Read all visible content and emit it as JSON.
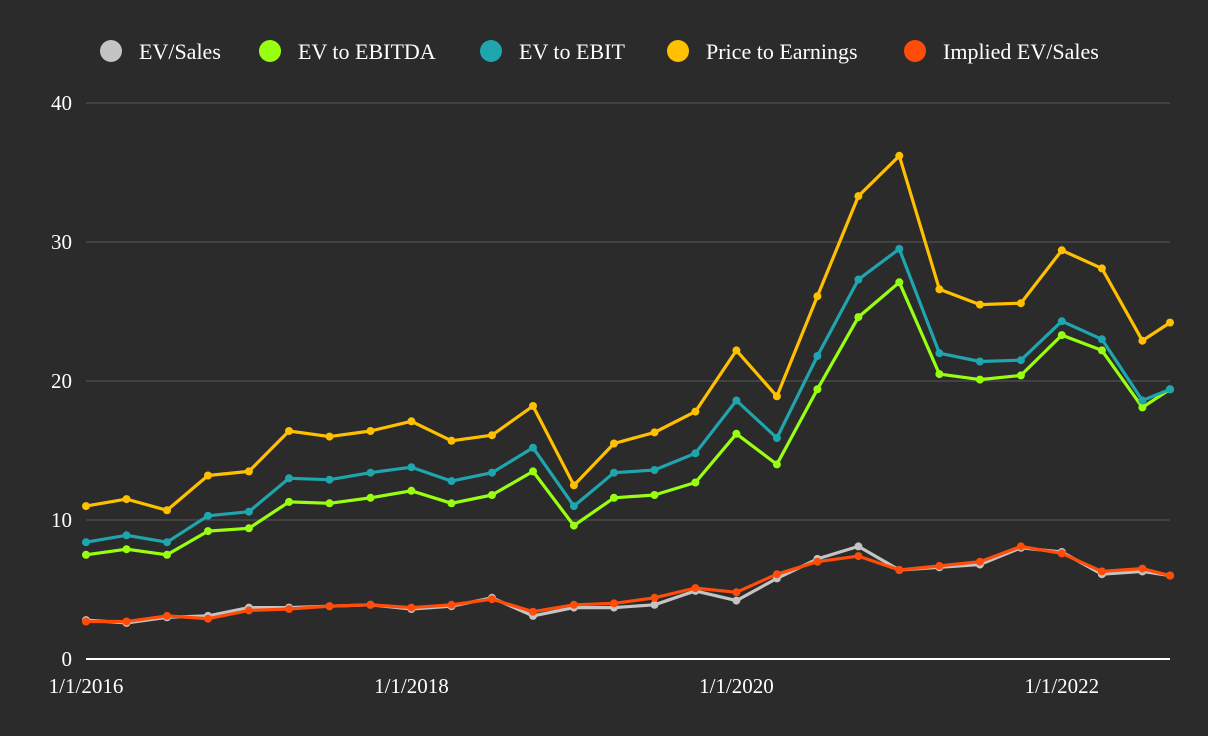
{
  "chart_data": {
    "type": "line",
    "title": "",
    "xlabel": "",
    "ylabel": "",
    "ylim": [
      0,
      40
    ],
    "yticks": [
      0,
      10,
      20,
      30,
      40
    ],
    "xlim": [
      "2016-01-01",
      "2022-09-01"
    ],
    "xticks": [
      {
        "date": "2016-01-01",
        "label": "1/1/2016"
      },
      {
        "date": "2018-01-01",
        "label": "1/1/2018"
      },
      {
        "date": "2020-01-01",
        "label": "1/1/2020"
      },
      {
        "date": "2022-01-01",
        "label": "1/1/2022"
      }
    ],
    "grid": true,
    "legend_position": "top",
    "background": "#2b2b2b",
    "x": [
      "2016-01-01",
      "2016-04-01",
      "2016-07-01",
      "2016-10-01",
      "2017-01-01",
      "2017-04-01",
      "2017-07-01",
      "2017-10-01",
      "2018-01-01",
      "2018-04-01",
      "2018-07-01",
      "2018-10-01",
      "2019-01-01",
      "2019-04-01",
      "2019-07-01",
      "2019-10-01",
      "2020-01-01",
      "2020-04-01",
      "2020-07-01",
      "2020-10-01",
      "2021-01-01",
      "2021-04-01",
      "2021-07-01",
      "2021-10-01",
      "2022-01-01",
      "2022-04-01",
      "2022-07-01",
      "2022-09-01"
    ],
    "series": [
      {
        "name": "EV/Sales",
        "color": "#c4c4c4",
        "values": [
          2.8,
          2.6,
          3.0,
          3.1,
          3.7,
          3.7,
          3.8,
          3.9,
          3.6,
          3.8,
          4.4,
          3.1,
          3.7,
          3.7,
          3.9,
          4.9,
          4.2,
          5.8,
          7.2,
          8.1,
          6.4,
          6.6,
          6.8,
          8.0,
          7.7,
          6.1,
          6.3,
          6.0
        ]
      },
      {
        "name": "EV to EBITDA",
        "color": "#99ff11",
        "values": [
          7.5,
          7.9,
          7.5,
          9.2,
          9.4,
          11.3,
          11.2,
          11.6,
          12.1,
          11.2,
          11.8,
          13.5,
          9.6,
          11.6,
          11.8,
          12.7,
          16.2,
          14.0,
          19.4,
          24.6,
          27.1,
          20.5,
          20.1,
          20.4,
          23.3,
          22.2,
          18.1,
          19.4
        ]
      },
      {
        "name": "EV to EBIT",
        "color": "#1fa5ad",
        "values": [
          8.4,
          8.9,
          8.4,
          10.3,
          10.6,
          13.0,
          12.9,
          13.4,
          13.8,
          12.8,
          13.4,
          15.2,
          11.0,
          13.4,
          13.6,
          14.8,
          18.6,
          15.9,
          21.8,
          27.3,
          29.5,
          22.0,
          21.4,
          21.5,
          24.3,
          23.0,
          18.6,
          19.4
        ]
      },
      {
        "name": "Price to Earnings",
        "color": "#ffc000",
        "values": [
          11.0,
          11.5,
          10.7,
          13.2,
          13.5,
          16.4,
          16.0,
          16.4,
          17.1,
          15.7,
          16.1,
          18.2,
          12.5,
          15.5,
          16.3,
          17.8,
          22.2,
          18.9,
          26.1,
          33.3,
          36.2,
          26.6,
          25.5,
          25.6,
          29.4,
          28.1,
          22.9,
          24.2
        ]
      },
      {
        "name": "Implied EV/Sales",
        "color": "#ff4c08",
        "values": [
          2.7,
          2.7,
          3.1,
          2.9,
          3.5,
          3.6,
          3.8,
          3.9,
          3.7,
          3.9,
          4.3,
          3.4,
          3.9,
          4.0,
          4.4,
          5.1,
          4.8,
          6.1,
          7.0,
          7.4,
          6.4,
          6.7,
          7.0,
          8.1,
          7.6,
          6.3,
          6.5,
          6.0
        ]
      }
    ]
  }
}
